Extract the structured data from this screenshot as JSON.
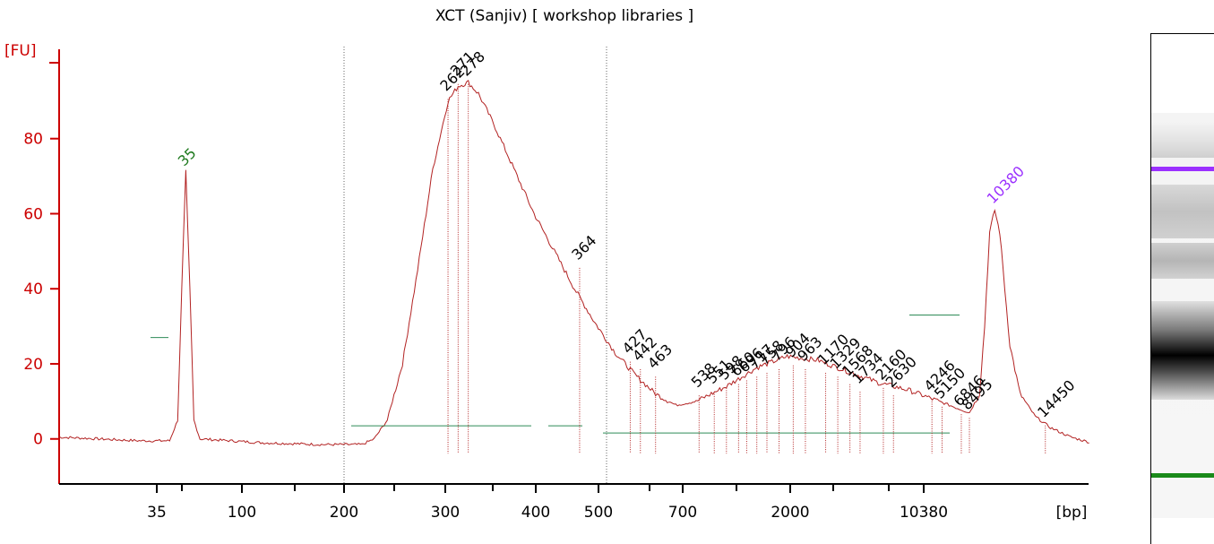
{
  "chart_data": {
    "type": "line",
    "title": "XCT (Sanjiv)  [ workshop libraries ]",
    "ylabel": "[FU]",
    "xlabel": "[bp]",
    "ylim": [
      -12,
      105
    ],
    "y_ticks": [
      0,
      20,
      40,
      60,
      80
    ],
    "x_ticks": [
      "35",
      "100",
      "200",
      "300",
      "400",
      "500",
      "700",
      "2000",
      "10380"
    ],
    "marker_colors": {
      "lower": "#1f7a1f",
      "upper": "#9b30ff"
    },
    "trace_color": "#b22222",
    "axis_color": "#cc0000",
    "peaks_curve": [
      {
        "pos": 0.0,
        "fu": 0.5
      },
      {
        "pos": 0.04,
        "fu": 0.0
      },
      {
        "pos": 0.08,
        "fu": -0.5
      },
      {
        "pos": 0.11,
        "fu": -0.5
      },
      {
        "pos": 0.118,
        "fu": 5
      },
      {
        "pos": 0.122,
        "fu": 40
      },
      {
        "pos": 0.126,
        "fu": 71
      },
      {
        "pos": 0.13,
        "fu": 40
      },
      {
        "pos": 0.134,
        "fu": 5
      },
      {
        "pos": 0.14,
        "fu": 0.0
      },
      {
        "pos": 0.2,
        "fu": -1.0
      },
      {
        "pos": 0.26,
        "fu": -1.5
      },
      {
        "pos": 0.3,
        "fu": -1.5
      },
      {
        "pos": 0.312,
        "fu": 0.0
      },
      {
        "pos": 0.325,
        "fu": 5
      },
      {
        "pos": 0.34,
        "fu": 20
      },
      {
        "pos": 0.355,
        "fu": 45
      },
      {
        "pos": 0.37,
        "fu": 72
      },
      {
        "pos": 0.385,
        "fu": 90
      },
      {
        "pos": 0.395,
        "fu": 94
      },
      {
        "pos": 0.405,
        "fu": 95
      },
      {
        "pos": 0.415,
        "fu": 92
      },
      {
        "pos": 0.43,
        "fu": 84
      },
      {
        "pos": 0.45,
        "fu": 72
      },
      {
        "pos": 0.47,
        "fu": 60
      },
      {
        "pos": 0.49,
        "fu": 50
      },
      {
        "pos": 0.51,
        "fu": 40
      },
      {
        "pos": 0.53,
        "fu": 31
      },
      {
        "pos": 0.55,
        "fu": 23
      },
      {
        "pos": 0.57,
        "fu": 17
      },
      {
        "pos": 0.59,
        "fu": 12
      },
      {
        "pos": 0.61,
        "fu": 9
      },
      {
        "pos": 0.63,
        "fu": 10
      },
      {
        "pos": 0.66,
        "fu": 14
      },
      {
        "pos": 0.69,
        "fu": 19
      },
      {
        "pos": 0.72,
        "fu": 22
      },
      {
        "pos": 0.75,
        "fu": 21
      },
      {
        "pos": 0.78,
        "fu": 18
      },
      {
        "pos": 0.81,
        "fu": 15
      },
      {
        "pos": 0.84,
        "fu": 13
      },
      {
        "pos": 0.86,
        "fu": 11
      },
      {
        "pos": 0.88,
        "fu": 9
      },
      {
        "pos": 0.9,
        "fu": 7
      },
      {
        "pos": 0.91,
        "fu": 12
      },
      {
        "pos": 0.915,
        "fu": 30
      },
      {
        "pos": 0.92,
        "fu": 55
      },
      {
        "pos": 0.925,
        "fu": 61
      },
      {
        "pos": 0.93,
        "fu": 55
      },
      {
        "pos": 0.935,
        "fu": 40
      },
      {
        "pos": 0.94,
        "fu": 25
      },
      {
        "pos": 0.95,
        "fu": 12
      },
      {
        "pos": 0.965,
        "fu": 6
      },
      {
        "pos": 0.98,
        "fu": 3
      },
      {
        "pos": 1.0,
        "fu": 0.5
      },
      {
        "pos": 1.02,
        "fu": -1.0
      }
    ],
    "peak_labels": [
      {
        "label": "35",
        "pos": 0.126,
        "fu": 72,
        "color": "#1f7a1f"
      },
      {
        "label": "262",
        "pos": 0.385,
        "fu": 92,
        "color": "#000000"
      },
      {
        "label": "271",
        "pos": 0.395,
        "fu": 96,
        "color": "#000000"
      },
      {
        "label": "278",
        "pos": 0.405,
        "fu": 96,
        "color": "#000000"
      },
      {
        "label": "364",
        "pos": 0.515,
        "fu": 47,
        "color": "#000000"
      },
      {
        "label": "427",
        "pos": 0.565,
        "fu": 22,
        "color": "#000000"
      },
      {
        "label": "442",
        "pos": 0.575,
        "fu": 20,
        "color": "#000000"
      },
      {
        "label": "463",
        "pos": 0.59,
        "fu": 18,
        "color": "#000000"
      },
      {
        "label": "538",
        "pos": 0.633,
        "fu": 13,
        "color": "#000000"
      },
      {
        "label": "551",
        "pos": 0.648,
        "fu": 14,
        "color": "#000000"
      },
      {
        "label": "598",
        "pos": 0.66,
        "fu": 15,
        "color": "#000000"
      },
      {
        "label": "660",
        "pos": 0.672,
        "fu": 16,
        "color": "#000000"
      },
      {
        "label": "696",
        "pos": 0.68,
        "fu": 17,
        "color": "#000000"
      },
      {
        "label": "717",
        "pos": 0.69,
        "fu": 18,
        "color": "#000000"
      },
      {
        "label": "758",
        "pos": 0.7,
        "fu": 19,
        "color": "#000000"
      },
      {
        "label": "796",
        "pos": 0.712,
        "fu": 20,
        "color": "#000000"
      },
      {
        "label": "904",
        "pos": 0.726,
        "fu": 21,
        "color": "#000000"
      },
      {
        "label": "963",
        "pos": 0.738,
        "fu": 20,
        "color": "#000000"
      },
      {
        "label": "1170",
        "pos": 0.758,
        "fu": 19,
        "color": "#000000"
      },
      {
        "label": "1329",
        "pos": 0.77,
        "fu": 18,
        "color": "#000000"
      },
      {
        "label": "1568",
        "pos": 0.782,
        "fu": 16,
        "color": "#000000"
      },
      {
        "label": "1734",
        "pos": 0.792,
        "fu": 14,
        "color": "#000000"
      },
      {
        "label": "2160",
        "pos": 0.815,
        "fu": 15,
        "color": "#000000"
      },
      {
        "label": "2630",
        "pos": 0.825,
        "fu": 13,
        "color": "#000000"
      },
      {
        "label": "4246",
        "pos": 0.863,
        "fu": 12,
        "color": "#000000"
      },
      {
        "label": "5150",
        "pos": 0.873,
        "fu": 10,
        "color": "#000000"
      },
      {
        "label": "6846",
        "pos": 0.892,
        "fu": 8,
        "color": "#000000"
      },
      {
        "label": "8495",
        "pos": 0.9,
        "fu": 7,
        "color": "#000000"
      },
      {
        "label": "10380",
        "pos": 0.925,
        "fu": 62,
        "color": "#9b30ff"
      },
      {
        "label": "14450",
        "pos": 0.975,
        "fu": 5,
        "color": "#000000"
      }
    ]
  }
}
